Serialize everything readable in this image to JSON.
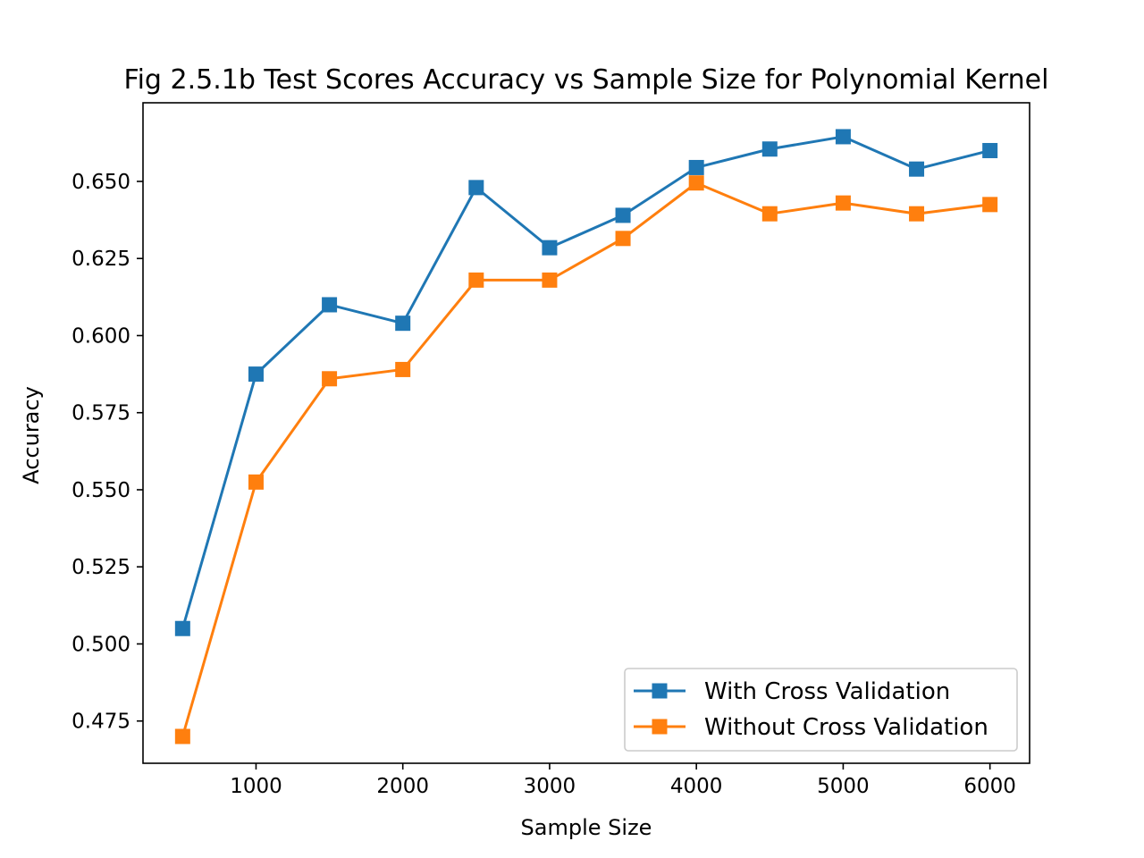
{
  "chart_data": {
    "type": "line",
    "title": "Fig 2.5.1b Test Scores Accuracy vs Sample Size for Polynomial Kernel",
    "xlabel": "Sample Size",
    "ylabel": "Accuracy",
    "x": [
      500,
      1000,
      1500,
      2000,
      2500,
      3000,
      3500,
      4000,
      4500,
      5000,
      5500,
      6000
    ],
    "xlim": [
      230,
      6270
    ],
    "ylim": [
      0.4613,
      0.6755
    ],
    "xticks": [
      1000,
      2000,
      3000,
      4000,
      5000,
      6000
    ],
    "yticks": [
      0.475,
      0.5,
      0.525,
      0.55,
      0.575,
      0.6,
      0.625,
      0.65
    ],
    "xtick_labels": [
      "1000",
      "2000",
      "3000",
      "4000",
      "5000",
      "6000"
    ],
    "ytick_labels": [
      "0.475",
      "0.500",
      "0.525",
      "0.550",
      "0.575",
      "0.600",
      "0.625",
      "0.650"
    ],
    "grid": false,
    "legend_position": "bottom-right",
    "marker": "square",
    "series": [
      {
        "name": "With Cross Validation",
        "color": "#1f77b4",
        "values": [
          0.505,
          0.5875,
          0.61,
          0.604,
          0.648,
          0.6285,
          0.639,
          0.6545,
          0.6605,
          0.6645,
          0.654,
          0.66
        ]
      },
      {
        "name": "Without Cross Validation",
        "color": "#ff7f0e",
        "values": [
          0.47,
          0.5525,
          0.586,
          0.589,
          0.618,
          0.618,
          0.6315,
          0.6495,
          0.6395,
          0.643,
          0.6395,
          0.6425
        ]
      }
    ]
  }
}
